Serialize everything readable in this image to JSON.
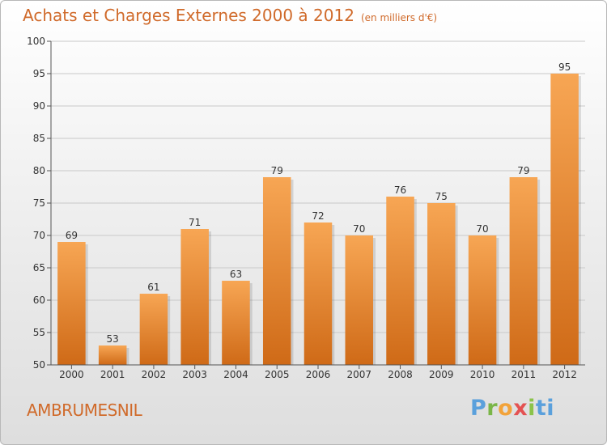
{
  "header": {
    "title": "Achats et Charges Externes 2000 à 2012",
    "unit": "(en milliers d'€)"
  },
  "footer": {
    "commune": "AMBRUMESNIL",
    "logo_letters": [
      "P",
      "r",
      "o",
      "x",
      "i",
      "t",
      "i"
    ]
  },
  "colors": {
    "bar_top": "#f7a654",
    "bar_bottom": "#cf6a17",
    "title": "#d06a2a",
    "grid": "#c9c9c9"
  },
  "chart_data": {
    "type": "bar",
    "title": "Achats et Charges Externes 2000 à 2012",
    "subtitle": "(en milliers d'€)",
    "categories": [
      "2000",
      "2001",
      "2002",
      "2003",
      "2004",
      "2005",
      "2006",
      "2007",
      "2008",
      "2009",
      "2010",
      "2011",
      "2012"
    ],
    "values": [
      69,
      53,
      61,
      71,
      63,
      79,
      72,
      70,
      76,
      75,
      70,
      79,
      95
    ],
    "xlabel": "",
    "ylabel": "",
    "ylim": [
      50,
      100
    ],
    "yticks": [
      50,
      55,
      60,
      65,
      70,
      75,
      80,
      85,
      90,
      95,
      100
    ],
    "grid": true,
    "legend": "none"
  }
}
